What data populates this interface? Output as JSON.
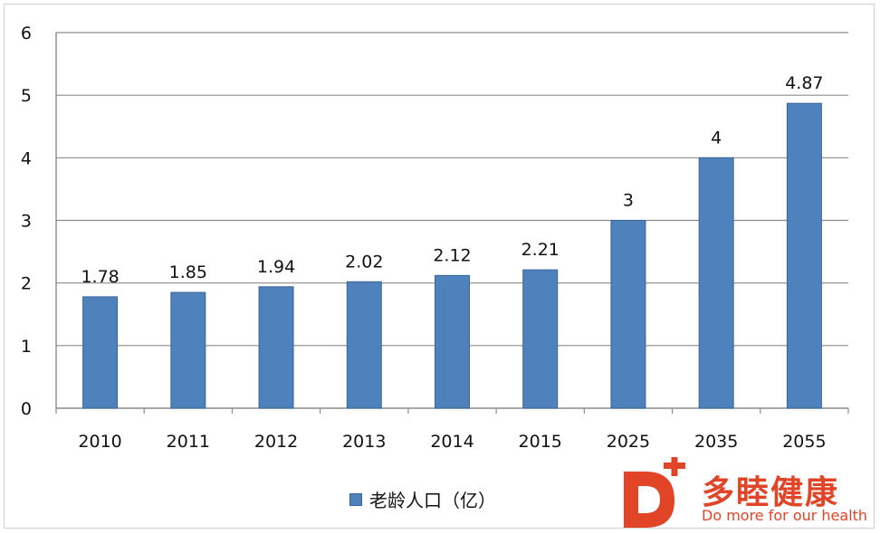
{
  "chart_data": {
    "type": "bar",
    "categories": [
      "2010",
      "2011",
      "2012",
      "2013",
      "2014",
      "2015",
      "2025",
      "2035",
      "2055"
    ],
    "series": [
      {
        "name": "老龄人口（亿）",
        "values": [
          1.78,
          1.85,
          1.94,
          2.02,
          2.12,
          2.21,
          3,
          4,
          4.87
        ]
      }
    ],
    "data_labels": [
      "1.78",
      "1.85",
      "1.94",
      "2.02",
      "2.12",
      "2.21",
      "3",
      "4",
      "4.87"
    ],
    "y_ticks": [
      "0",
      "1",
      "2",
      "3",
      "4",
      "5",
      "6"
    ],
    "ylim": [
      0,
      6
    ],
    "grid": true,
    "legend_position": "bottom",
    "bar_color": "#4f81bd",
    "bar_edge_color": "#3a6599",
    "grid_color": "#8c8c8c"
  },
  "legend": {
    "label": "老龄人口（亿）"
  },
  "watermark": {
    "brand": "多睦健康",
    "tagline": "Do more for our health",
    "logo_letter": "D",
    "color": "#e24428"
  }
}
